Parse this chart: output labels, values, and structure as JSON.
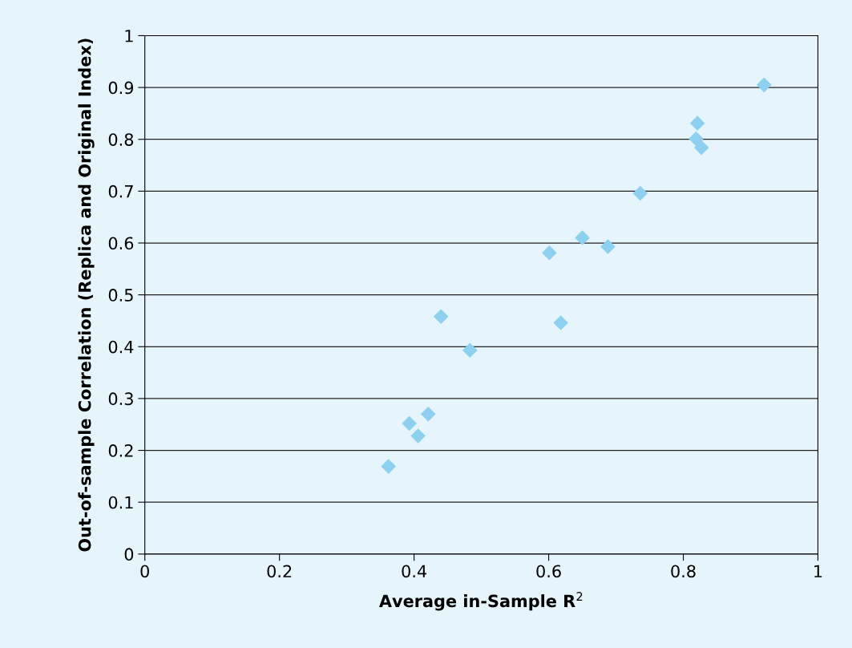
{
  "chart_data": {
    "type": "scatter",
    "xlabel": "Average in-Sample R$^{2}$",
    "ylabel": "Out-of-sample Correlation (Replica and Original Index)",
    "x": [
      0.362,
      0.393,
      0.406,
      0.421,
      0.44,
      0.483,
      0.601,
      0.618,
      0.65,
      0.688,
      0.736,
      0.821,
      0.819,
      0.827,
      0.92
    ],
    "series": [
      {
        "color": "#8dd0f0",
        "values": [
          0.169,
          0.252,
          0.228,
          0.27,
          0.458,
          0.393,
          0.581,
          0.446,
          0.61,
          0.593,
          0.696,
          0.831,
          0.801,
          0.784,
          0.905
        ]
      }
    ],
    "xlim": [
      0,
      1
    ],
    "ylim": [
      0,
      1
    ],
    "xticks": [
      0,
      0.2,
      0.4,
      0.6,
      0.8,
      1
    ],
    "yticks": [
      0,
      0.1,
      0.2,
      0.3,
      0.4,
      0.5,
      0.6,
      0.7,
      0.8,
      0.9,
      1
    ],
    "grid": "y",
    "marker": "diamond"
  }
}
